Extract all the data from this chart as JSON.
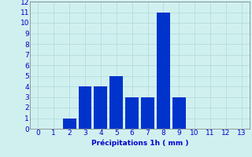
{
  "categories": [
    0,
    1,
    2,
    3,
    4,
    5,
    6,
    7,
    8,
    9,
    10,
    11,
    12,
    13
  ],
  "values": [
    0,
    0,
    1,
    4,
    4,
    5,
    3,
    3,
    11,
    3,
    0,
    0,
    0,
    0
  ],
  "bar_color": "#0033cc",
  "background_color": "#d0f0f0",
  "grid_color": "#b0d8d8",
  "xlabel": "Précipitations 1h ( mm )",
  "xlabel_color": "#0000cc",
  "tick_color": "#0000cc",
  "ylim": [
    0,
    12
  ],
  "yticks": [
    0,
    1,
    2,
    3,
    4,
    5,
    6,
    7,
    8,
    9,
    10,
    11,
    12
  ],
  "xticks": [
    0,
    1,
    2,
    3,
    4,
    5,
    6,
    7,
    8,
    9,
    10,
    11,
    12,
    13
  ],
  "bar_width": 0.85,
  "label_fontsize": 6.5
}
